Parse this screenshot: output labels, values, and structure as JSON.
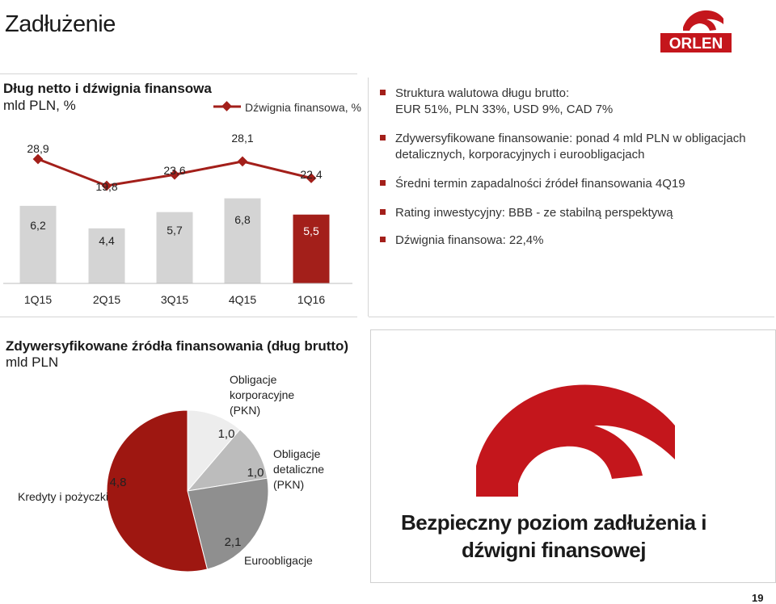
{
  "page": {
    "title": "Zadłużenie",
    "number": "19"
  },
  "logo": {
    "text": "ORLEN",
    "color": "#c4161c"
  },
  "colors": {
    "accent": "#a31f1a",
    "bar_gray": "#d4d4d4",
    "line_red": "#a31f1a"
  },
  "bullets": [
    {
      "lines": [
        "Struktura walutowa długu brutto:",
        "EUR 51%, PLN 33%, USD 9%, CAD 7%"
      ]
    },
    {
      "lines": [
        "Zdywersyfikowane finansowanie: ponad 4 mld PLN w obligacjach",
        "detalicznych, korporacyjnych i euroobligacjach"
      ]
    },
    {
      "lines": [
        "Średni termin zapadalności źródeł finansowania 4Q19"
      ]
    },
    {
      "lines": [
        "Rating inwestycyjny: BBB - ze stabilną perspektywą"
      ]
    },
    {
      "lines": [
        "Dźwignia finansowa: 22,4%"
      ]
    }
  ],
  "headline": {
    "line1": "Bezpieczny poziom zadłużenia i",
    "line2": "dźwigni finansowej"
  },
  "chart_data": [
    {
      "type": "bar",
      "title": "Dług netto i dźwignia finansowa",
      "subtitle": "mld PLN, %",
      "categories": [
        "1Q15",
        "2Q15",
        "3Q15",
        "4Q15",
        "1Q16"
      ],
      "series": [
        {
          "name": "Dług netto",
          "values": [
            6.2,
            4.4,
            5.7,
            6.8,
            5.5
          ],
          "labels": [
            "6,2",
            "4,4",
            "5,7",
            "6,8",
            "5,5"
          ]
        },
        {
          "name": "Dźwignia finansowa, %",
          "type": "line",
          "values": [
            28.9,
            19.8,
            23.6,
            28.1,
            22.4
          ],
          "labels": [
            "28,9",
            "19,8",
            "23,6",
            "28,1",
            "22,4"
          ]
        }
      ],
      "legend": "Dźwignia finansowa, %",
      "highlight_last": true
    },
    {
      "type": "pie",
      "title": "Zdywersyfikowane źródła finansowania (dług brutto)",
      "subtitle": "mld PLN",
      "slices": [
        {
          "name": "Kredyty i pożyczki",
          "value": 4.8,
          "label": "4,8",
          "color": "#9e1711"
        },
        {
          "name": "Obligacje korporacyjne (PKN)",
          "value": 1.0,
          "label": "1,0",
          "color": "#ededed"
        },
        {
          "name": "Obligacje detaliczne (PKN)",
          "value": 1.0,
          "label": "1,0",
          "color": "#bcbcbc"
        },
        {
          "name": "Euroobligacje",
          "value": 2.1,
          "label": "2,1",
          "color": "#8f8f8f"
        }
      ],
      "category_labels": {
        "kredyty": "Kredyty i pożyczki",
        "korporacyjne": [
          "Obligacje",
          "korporacyjne",
          "(PKN)"
        ],
        "detaliczne": [
          "Obligacje",
          "detaliczne",
          "(PKN)"
        ],
        "euro": "Euroobligacje"
      }
    }
  ]
}
